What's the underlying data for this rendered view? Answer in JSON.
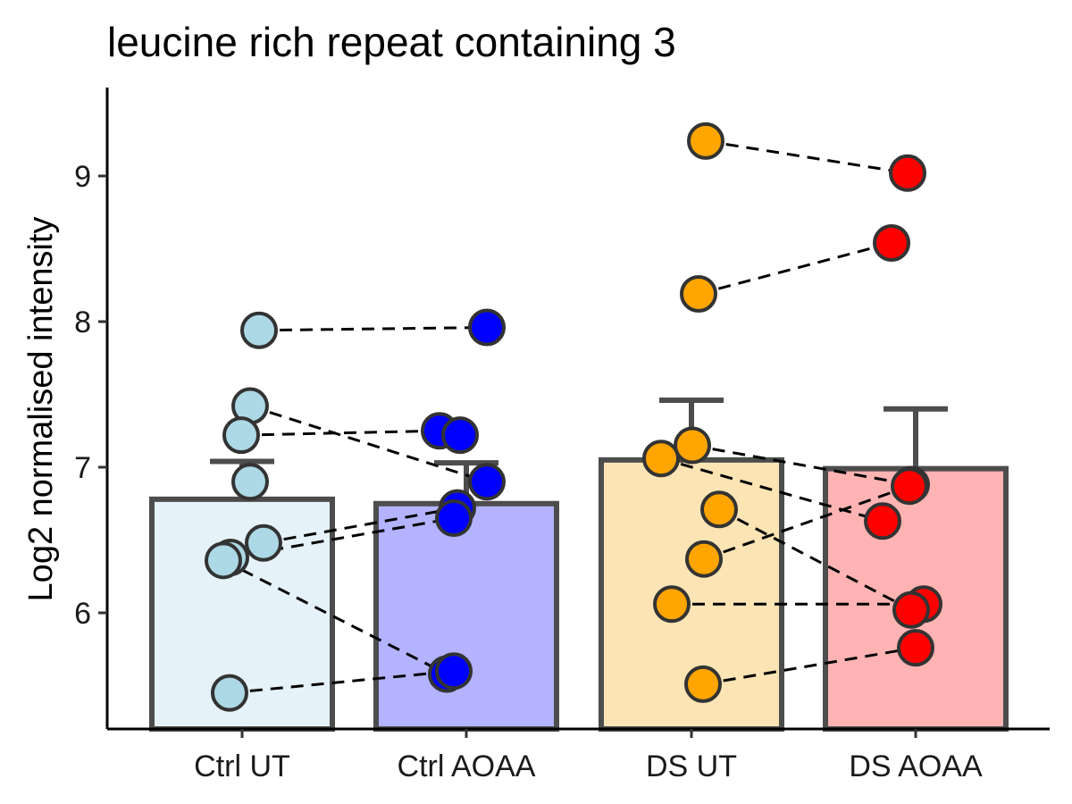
{
  "chart_data": {
    "type": "bar",
    "title": "leucine rich repeat containing 3",
    "xlabel": "",
    "ylabel": "Log2 normalised intensity",
    "ylim": [
      5.2,
      9.6
    ],
    "yticks": [
      6,
      7,
      8,
      9
    ],
    "grid": false,
    "categories": [
      "Ctrl UT",
      "Ctrl AOAA",
      "DS UT",
      "DS AOAA"
    ],
    "bar_values": [
      6.78,
      6.75,
      7.05,
      6.99
    ],
    "error_upper": [
      7.04,
      7.03,
      7.46,
      7.4
    ],
    "bar_fill_colors": [
      "#e6f2f9",
      "#b3b3ff",
      "#fce4b5",
      "#ffb3b3"
    ],
    "point_colors": [
      "#add8e6",
      "#0000ff",
      "#ffa500",
      "#ff0000"
    ],
    "points": [
      [
        7.94,
        7.42,
        7.22,
        6.9,
        6.48,
        6.38,
        6.36,
        5.45
      ],
      [
        7.96,
        7.25,
        7.22,
        6.9,
        6.72,
        6.65,
        5.58,
        5.6
      ],
      [
        9.24,
        8.19,
        7.15,
        7.06,
        6.71,
        6.37,
        6.06,
        5.51
      ],
      [
        9.02,
        8.54,
        6.88,
        6.87,
        6.63,
        6.06,
        6.02,
        5.76
      ]
    ],
    "pairs": [
      [
        7.94,
        7.96
      ],
      [
        7.42,
        6.9
      ],
      [
        7.22,
        7.25
      ],
      [
        6.48,
        6.72
      ],
      [
        6.38,
        6.65
      ],
      [
        6.36,
        5.58
      ],
      [
        5.45,
        5.6
      ],
      [
        9.24,
        9.02
      ],
      [
        8.19,
        8.54
      ],
      [
        7.15,
        6.88
      ],
      [
        7.06,
        6.63
      ],
      [
        6.71,
        6.02
      ],
      [
        6.37,
        6.87
      ],
      [
        6.06,
        6.06
      ],
      [
        5.51,
        5.76
      ]
    ]
  }
}
